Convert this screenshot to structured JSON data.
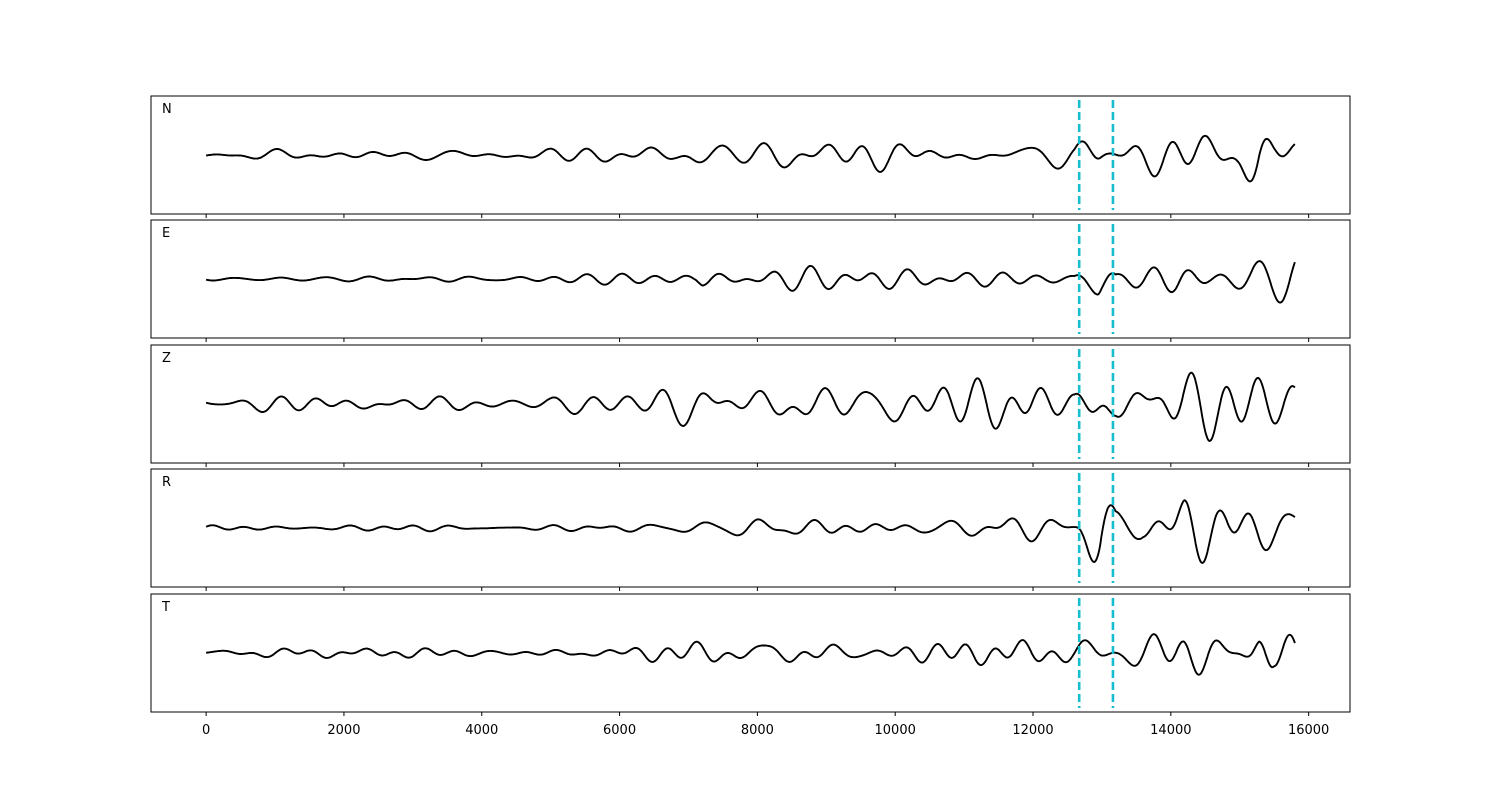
{
  "chart_data": {
    "type": "line",
    "title": "",
    "xlabel": "",
    "ylabel": "",
    "xlim": [
      -800,
      16600
    ],
    "x_ticks": [
      0,
      2000,
      4000,
      6000,
      8000,
      10000,
      12000,
      14000,
      16000
    ],
    "x_tick_labels": [
      "0",
      "2000",
      "4000",
      "6000",
      "8000",
      "10000",
      "12000",
      "14000",
      "16000"
    ],
    "samples": 15800,
    "line_color": "#000000",
    "marker_color": "#17becf",
    "markers_x": [
      12670,
      13160
    ],
    "panels": [
      {
        "label": "N",
        "ylim": [
          -1,
          1
        ],
        "envelope": [
          [
            0,
            0.07
          ],
          [
            5000,
            0.1
          ],
          [
            6800,
            0.14
          ],
          [
            7100,
            0.22
          ],
          [
            10000,
            0.23
          ],
          [
            11500,
            0.22
          ],
          [
            12600,
            0.18
          ],
          [
            12950,
            0.55
          ],
          [
            13100,
            0.3
          ],
          [
            13400,
            0.38
          ],
          [
            14200,
            0.48
          ],
          [
            15000,
            0.45
          ],
          [
            15250,
            0.85
          ],
          [
            15500,
            0.45
          ],
          [
            15800,
            0.35
          ]
        ]
      },
      {
        "label": "E",
        "ylim": [
          -1,
          1
        ],
        "envelope": [
          [
            0,
            0.05
          ],
          [
            5000,
            0.07
          ],
          [
            7100,
            0.09
          ],
          [
            7200,
            0.18
          ],
          [
            10000,
            0.17
          ],
          [
            11500,
            0.16
          ],
          [
            12600,
            0.15
          ],
          [
            12950,
            0.85
          ],
          [
            13200,
            0.2
          ],
          [
            13400,
            0.3
          ],
          [
            14100,
            0.6
          ],
          [
            14600,
            0.35
          ],
          [
            15200,
            0.45
          ],
          [
            15800,
            0.35
          ]
        ]
      },
      {
        "label": "Z",
        "ylim": [
          -1,
          1
        ],
        "envelope": [
          [
            0,
            0.1
          ],
          [
            1600,
            0.12
          ],
          [
            5000,
            0.12
          ],
          [
            6300,
            0.22
          ],
          [
            6900,
            0.4
          ],
          [
            7400,
            0.6
          ],
          [
            8000,
            0.45
          ],
          [
            10000,
            0.45
          ],
          [
            12000,
            0.42
          ],
          [
            12600,
            0.25
          ],
          [
            13000,
            0.62
          ],
          [
            13200,
            0.4
          ],
          [
            14000,
            0.65
          ],
          [
            14800,
            0.55
          ],
          [
            15800,
            0.4
          ]
        ]
      },
      {
        "label": "R",
        "ylim": [
          -1,
          1
        ],
        "envelope": [
          [
            0,
            0.05
          ],
          [
            6800,
            0.07
          ],
          [
            7200,
            0.12
          ],
          [
            8000,
            0.18
          ],
          [
            10000,
            0.17
          ],
          [
            11500,
            0.18
          ],
          [
            12600,
            0.13
          ],
          [
            12970,
            0.85
          ],
          [
            13200,
            0.3
          ],
          [
            13600,
            0.22
          ],
          [
            14200,
            0.65
          ],
          [
            14700,
            0.45
          ],
          [
            15300,
            0.4
          ],
          [
            15800,
            0.32
          ]
        ]
      },
      {
        "label": "T",
        "ylim": [
          -1,
          1
        ],
        "envelope": [
          [
            0,
            0.08
          ],
          [
            6000,
            0.1
          ],
          [
            7200,
            0.15
          ],
          [
            8600,
            0.28
          ],
          [
            10000,
            0.2
          ],
          [
            11500,
            0.22
          ],
          [
            12600,
            0.18
          ],
          [
            13000,
            0.3
          ],
          [
            13300,
            0.25
          ],
          [
            14200,
            0.45
          ],
          [
            15000,
            0.4
          ],
          [
            15280,
            0.95
          ],
          [
            15500,
            0.4
          ],
          [
            15800,
            0.3
          ]
        ]
      }
    ]
  }
}
